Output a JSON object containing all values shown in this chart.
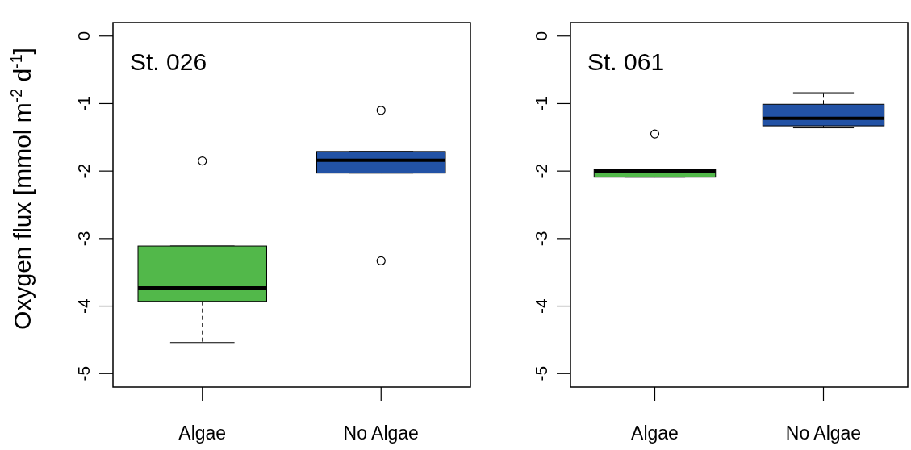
{
  "chart_data": [
    {
      "type": "box",
      "title": "St. 026",
      "ylabel": "Oxygen flux [mmol m$^{-2}$ d$^{-1}$]",
      "categories": [
        "Algae",
        "No Algae"
      ],
      "colors": [
        "#52b84a",
        "#2252a5"
      ],
      "boxes": [
        {
          "low": -4.54,
          "q1": -3.93,
          "median": -3.73,
          "q3": -3.11,
          "high": -3.11,
          "outliers": [
            -1.85
          ]
        },
        {
          "low": -2.03,
          "q1": -2.03,
          "median": -1.84,
          "q3": -1.71,
          "high": -1.71,
          "outliers": [
            -1.1,
            -3.33
          ]
        }
      ],
      "ylim": [
        -5.2,
        0.2
      ],
      "yticks": [
        0,
        -1,
        -2,
        -3,
        -4,
        -5
      ]
    },
    {
      "type": "box",
      "title": "St. 061",
      "categories": [
        "Algae",
        "No Algae"
      ],
      "colors": [
        "#52b84a",
        "#2252a5"
      ],
      "boxes": [
        {
          "low": -2.09,
          "q1": -2.09,
          "median": -2.0,
          "q3": -1.98,
          "high": -1.98,
          "outliers": [
            -1.45
          ]
        },
        {
          "low": -1.36,
          "q1": -1.33,
          "median": -1.22,
          "q3": -1.01,
          "high": -0.84
        }
      ],
      "ylim": [
        -5.2,
        0.2
      ],
      "yticks": [
        0,
        -1,
        -2,
        -3,
        -4,
        -5
      ]
    }
  ]
}
